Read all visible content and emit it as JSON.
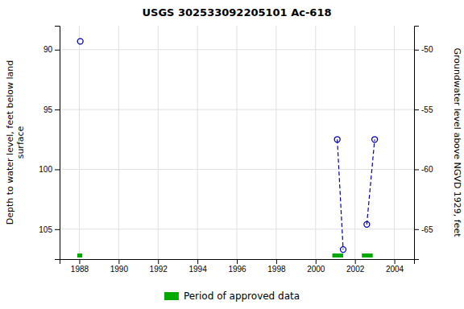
{
  "chart_data": {
    "type": "scatter",
    "title": "USGS 302533092205101 Ac-618",
    "ylabel": "Depth to water level, feet below land\n surface",
    "y2label": "Groundwater level above NGVD 1929, feet",
    "xlim": [
      1987.0,
      2005.0
    ],
    "xticks": [
      1988,
      1990,
      1992,
      1994,
      1996,
      1998,
      2000,
      2002,
      2004
    ],
    "ylim": [
      107.5,
      88.0
    ],
    "yticks": [
      90,
      95,
      100,
      105
    ],
    "y2lim": [
      -67.5,
      -48.0
    ],
    "y2ticks": [
      -50,
      -55,
      -60,
      -65
    ],
    "grid": true,
    "legend": "bottom",
    "series": [
      {
        "type": "scatter",
        "marker": "open-circle",
        "color": "#0000bb",
        "x": [
          1988.05,
          2001.1,
          2001.4,
          2002.6,
          2003.0
        ],
        "values": [
          89.3,
          97.5,
          106.7,
          104.6,
          97.5
        ]
      },
      {
        "type": "line",
        "line_style": "dashed",
        "color": "#0000bb",
        "x": [
          2001.1,
          2001.4
        ],
        "values": [
          97.5,
          106.7
        ]
      },
      {
        "type": "line",
        "line_style": "dashed",
        "color": "#0000bb",
        "x": [
          2002.6,
          2003.0
        ],
        "values": [
          104.6,
          97.5
        ]
      },
      {
        "type": "span",
        "name": "Period of approved data",
        "color": "#00aa00",
        "x": [
          1987.9,
          2000.85,
          2002.35
        ],
        "widths": [
          0.25,
          0.55,
          0.55
        ]
      }
    ]
  }
}
